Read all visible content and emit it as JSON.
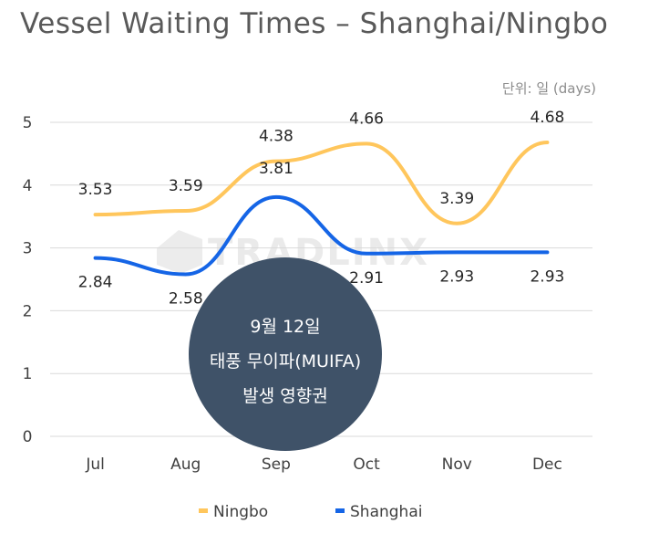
{
  "title": "Vessel Waiting Times – Shanghai/Ningbo",
  "unit_label": "단위: 일 (days)",
  "watermark": "TRADLINX",
  "annotation": [
    "9월 12일",
    "태풍 무이파(MUIFA)",
    "발생 영향권"
  ],
  "colors": {
    "ningbo": "#FFC65C",
    "shanghai": "#1565E6",
    "grid": "#d9d9d9",
    "callout": "#3F5268"
  },
  "chart_data": {
    "type": "line",
    "categories": [
      "Jul",
      "Aug",
      "Sep",
      "Oct",
      "Nov",
      "Dec"
    ],
    "ylim": [
      0,
      5
    ],
    "yticks": [
      0,
      1,
      2,
      3,
      4,
      5
    ],
    "grid": true,
    "legend_position": "bottom",
    "series": [
      {
        "name": "Ningbo",
        "values": [
          3.53,
          3.59,
          4.38,
          4.66,
          3.39,
          4.68
        ]
      },
      {
        "name": "Shanghai",
        "values": [
          2.84,
          2.58,
          3.81,
          2.91,
          2.93,
          2.93
        ]
      }
    ]
  }
}
